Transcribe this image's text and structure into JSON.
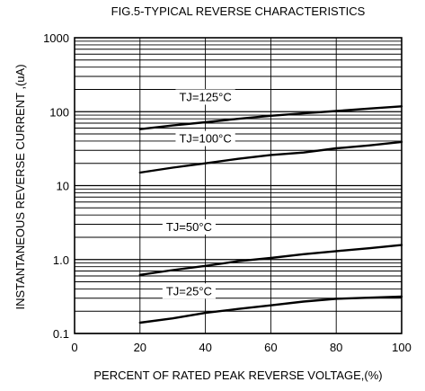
{
  "chart_data": {
    "type": "line",
    "title": "FIG.5-TYPICAL REVERSE CHARACTERISTICS",
    "xlabel": "PERCENT OF RATED PEAK REVERSE VOLTAGE,(%)",
    "ylabel": "INSTANTANEOUS  REVERSE  CURRENT ,(uA)",
    "xlim": [
      0,
      100
    ],
    "ylim": [
      0.1,
      1000
    ],
    "yscale": "log",
    "grid": true,
    "x_ticks": [
      0,
      20,
      40,
      60,
      80,
      100
    ],
    "x_tick_labels": [
      "0",
      "20",
      "40",
      "60",
      "80",
      "100"
    ],
    "y_ticks": [
      0.1,
      1,
      10,
      100,
      1000
    ],
    "y_tick_labels": [
      "0.1",
      "1.0",
      "10",
      "100",
      "1000"
    ],
    "series": [
      {
        "name": "TJ=125°C",
        "x": [
          20,
          30,
          40,
          50,
          60,
          70,
          80,
          90,
          100
        ],
        "values": [
          58,
          65,
          72,
          80,
          88,
          95,
          102,
          110,
          118
        ]
      },
      {
        "name": "TJ=100°C",
        "x": [
          20,
          30,
          40,
          50,
          60,
          70,
          80,
          90,
          100
        ],
        "values": [
          15,
          17.5,
          20,
          23,
          26,
          28,
          32,
          35,
          39
        ]
      },
      {
        "name": "TJ=50°C",
        "x": [
          20,
          30,
          40,
          50,
          60,
          70,
          80,
          90,
          100
        ],
        "values": [
          0.62,
          0.72,
          0.82,
          0.95,
          1.05,
          1.18,
          1.3,
          1.42,
          1.57
        ]
      },
      {
        "name": "TJ=25°C",
        "x": [
          20,
          30,
          40,
          50,
          60,
          70,
          80,
          90,
          100
        ],
        "values": [
          0.14,
          0.16,
          0.19,
          0.215,
          0.24,
          0.27,
          0.295,
          0.305,
          0.315
        ]
      }
    ]
  }
}
